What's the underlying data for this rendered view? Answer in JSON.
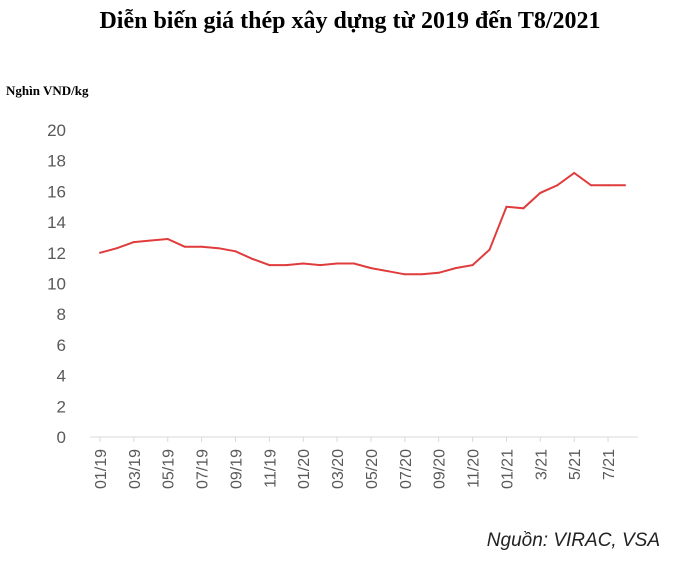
{
  "title": "Diễn biến giá thép xây dựng từ 2019 đến T8/2021",
  "unit_label": "Nghìn VND/kg",
  "source": "Nguồn: VIRAC, VSA",
  "colors": {
    "line": "#e03c3c",
    "axis": "#d9d9d9",
    "tick_text": "#595959"
  },
  "chart_data": {
    "type": "line",
    "title": "Diễn biến giá thép xây dựng từ 2019 đến T8/2021",
    "ylabel": "Nghìn VND/kg",
    "xlabel": "",
    "ylim": [
      0,
      20
    ],
    "yticks": [
      0,
      2,
      4,
      6,
      8,
      10,
      12,
      14,
      16,
      18,
      20
    ],
    "grid": false,
    "xtick_labels": [
      "01/19",
      "03/19",
      "05/19",
      "07/19",
      "09/19",
      "11/19",
      "01/20",
      "03/20",
      "05/20",
      "07/20",
      "09/20",
      "11/20",
      "01/21",
      "3/21",
      "5/21",
      "7/21"
    ],
    "x": [
      "01/19",
      "02/19",
      "03/19",
      "04/19",
      "05/19",
      "06/19",
      "07/19",
      "08/19",
      "09/19",
      "10/19",
      "11/19",
      "12/19",
      "01/20",
      "02/20",
      "03/20",
      "04/20",
      "05/20",
      "06/20",
      "07/20",
      "08/20",
      "09/20",
      "10/20",
      "11/20",
      "12/20",
      "01/21",
      "02/21",
      "03/21",
      "04/21",
      "05/21",
      "06/21",
      "07/21",
      "08/21"
    ],
    "series": [
      {
        "values": [
          12.0,
          12.3,
          12.7,
          12.8,
          12.9,
          12.4,
          12.4,
          12.3,
          12.1,
          11.6,
          11.2,
          11.2,
          11.3,
          11.2,
          11.3,
          11.3,
          11.0,
          10.8,
          10.6,
          10.6,
          10.7,
          11.0,
          11.2,
          12.2,
          15.0,
          14.9,
          15.9,
          16.4,
          17.2,
          16.4,
          16.4,
          16.4
        ]
      }
    ]
  }
}
